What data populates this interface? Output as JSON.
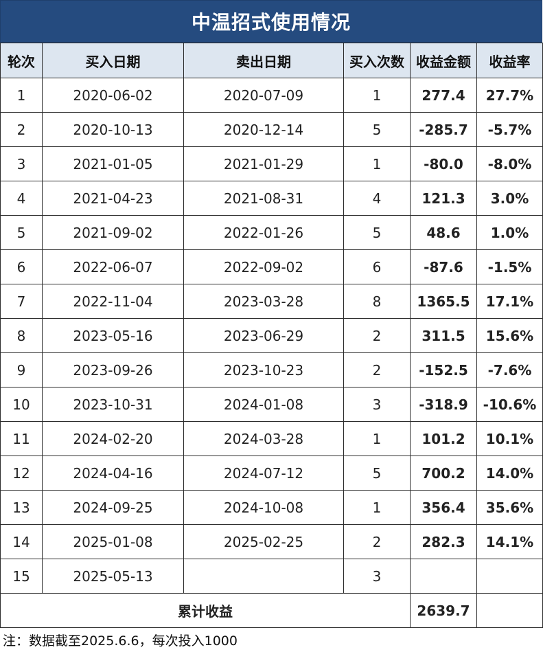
{
  "title": "中温招式使用情况",
  "headers": [
    "轮次",
    "买入日期",
    "卖出日期",
    "买入次数",
    "收益金额",
    "收益率"
  ],
  "rows": [
    {
      "round": "1",
      "buy_date": "2020-06-02",
      "sell_date": "2020-07-09",
      "buys": "1",
      "profit": "277.4",
      "rate": "27.7%",
      "sign": "pos"
    },
    {
      "round": "2",
      "buy_date": "2020-10-13",
      "sell_date": "2020-12-14",
      "buys": "5",
      "profit": "-285.7",
      "rate": "-5.7%",
      "sign": "neg"
    },
    {
      "round": "3",
      "buy_date": "2021-01-05",
      "sell_date": "2021-01-29",
      "buys": "1",
      "profit": "-80.0",
      "rate": "-8.0%",
      "sign": "neg"
    },
    {
      "round": "4",
      "buy_date": "2021-04-23",
      "sell_date": "2021-08-31",
      "buys": "4",
      "profit": "121.3",
      "rate": "3.0%",
      "sign": "pos"
    },
    {
      "round": "5",
      "buy_date": "2021-09-02",
      "sell_date": "2022-01-26",
      "buys": "5",
      "profit": "48.6",
      "rate": "1.0%",
      "sign": "pos"
    },
    {
      "round": "6",
      "buy_date": "2022-06-07",
      "sell_date": "2022-09-02",
      "buys": "6",
      "profit": "-87.6",
      "rate": "-1.5%",
      "sign": "neg"
    },
    {
      "round": "7",
      "buy_date": "2022-11-04",
      "sell_date": "2023-03-28",
      "buys": "8",
      "profit": "1365.5",
      "rate": "17.1%",
      "sign": "pos"
    },
    {
      "round": "8",
      "buy_date": "2023-05-16",
      "sell_date": "2023-06-29",
      "buys": "2",
      "profit": "311.5",
      "rate": "15.6%",
      "sign": "pos"
    },
    {
      "round": "9",
      "buy_date": "2023-09-26",
      "sell_date": "2023-10-23",
      "buys": "2",
      "profit": "-152.5",
      "rate": "-7.6%",
      "sign": "neg"
    },
    {
      "round": "10",
      "buy_date": "2023-10-31",
      "sell_date": "2024-01-08",
      "buys": "3",
      "profit": "-318.9",
      "rate": "-10.6%",
      "sign": "neg"
    },
    {
      "round": "11",
      "buy_date": "2024-02-20",
      "sell_date": "2024-03-28",
      "buys": "1",
      "profit": "101.2",
      "rate": "10.1%",
      "sign": "pos"
    },
    {
      "round": "12",
      "buy_date": "2024-04-16",
      "sell_date": "2024-07-12",
      "buys": "5",
      "profit": "700.2",
      "rate": "14.0%",
      "sign": "pos"
    },
    {
      "round": "13",
      "buy_date": "2024-09-25",
      "sell_date": "2024-10-08",
      "buys": "1",
      "profit": "356.4",
      "rate": "35.6%",
      "sign": "pos"
    },
    {
      "round": "14",
      "buy_date": "2025-01-08",
      "sell_date": "2025-02-25",
      "buys": "2",
      "profit": "282.3",
      "rate": "14.1%",
      "sign": "pos"
    },
    {
      "round": "15",
      "buy_date": "2025-05-13",
      "sell_date": "",
      "buys": "3",
      "profit": "",
      "rate": "",
      "sign": ""
    }
  ],
  "total": {
    "label": "累计收益",
    "value": "2639.7"
  },
  "note": "注：数据截至2025.6.6，每次投入1000",
  "colors": {
    "header_bg": "#254b7f",
    "col_header_bg": "#dde6f0",
    "positive": "#e02020",
    "negative": "#1aa34a"
  }
}
